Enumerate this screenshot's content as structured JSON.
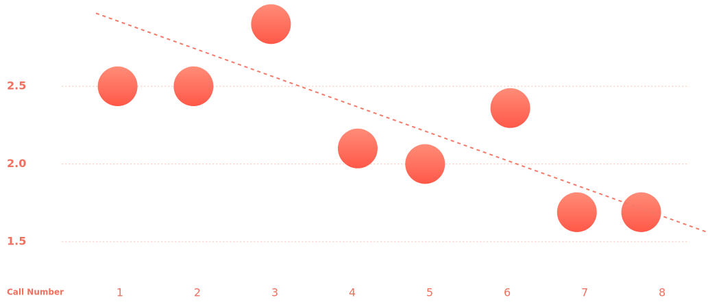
{
  "chart_data": {
    "type": "scatter",
    "x_label": "Call Number",
    "x": [
      0.97,
      1.95,
      2.95,
      4.07,
      4.94,
      6.04,
      6.9,
      7.73
    ],
    "series": [
      {
        "color": "#ff6a58",
        "values": [
          2.5,
          2.5,
          2.9,
          2.1,
          2.0,
          2.36,
          1.69,
          1.69
        ]
      }
    ],
    "trendline": {
      "x": [
        0.69,
        8.59
      ],
      "y": [
        2.97,
        1.56
      ],
      "color": "#f47a68"
    },
    "xlim": [
      0.25,
      8.35
    ],
    "xticks": [
      1,
      2,
      3,
      4,
      5,
      6,
      7,
      8
    ],
    "ylim": [
      1.4,
      3.0
    ],
    "yticks": [
      {
        "value": 1.5,
        "label": "1.5"
      },
      {
        "value": 2,
        "label": "2.0"
      },
      {
        "value": 2.5,
        "label": "2.5"
      }
    ],
    "grid": true
  }
}
